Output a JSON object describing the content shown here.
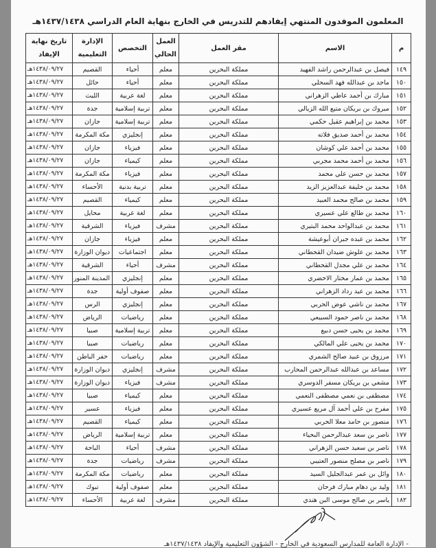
{
  "title": "المعلمون الموفدون المنتهي إيفادهم للتدريس في الخارج بنهاية العام الدراسي ١٤٣٧/١٤٣٨هـ",
  "headers": {
    "num": "م",
    "name": "الاسم",
    "workplace": "مقر العمل",
    "current_job_1": "العمل",
    "current_job_2": "الحالي",
    "specialty": "التخصص",
    "admin_1": "الإدارة",
    "admin_2": "التعليمية",
    "end_date_1": "تاريخ نهاية",
    "end_date_2": "الإيفاد"
  },
  "rows": [
    [
      "١٤٩",
      "فيصل بن عبدالرحمن راشد الفهيد",
      "مملكة البحرين",
      "معلم",
      "أحياء",
      "القصيم",
      "١٤٣٨/٠٩/٢٧هـ"
    ],
    [
      "١٥٠",
      "ماجد بن عبدالله فهد السحلي",
      "مملكة البحرين",
      "معلم",
      "أحياء",
      "حائل",
      "١٤٣٨/٠٩/٢٧هـ"
    ],
    [
      "١٥١",
      "مبارك بن أحمد عاطي الزهراني",
      "مملكة البحرين",
      "معلم",
      "لغة عربية",
      "الليث",
      "١٤٣٨/٠٩/٢٧هـ"
    ],
    [
      "١٥٢",
      "مبروك بن بريكان متيع الله الزيالي",
      "مملكة البحرين",
      "معلم",
      "تربية إسلامية",
      "جدة",
      "١٤٣٨/٠٩/٢٧هـ"
    ],
    [
      "١٥٣",
      "محمد بن إبراهيم عقيل حكمي",
      "مملكة البحرين",
      "معلم",
      "تربية إسلامية",
      "جازان",
      "١٤٣٨/٠٩/٢٧هـ"
    ],
    [
      "١٥٤",
      "محمد بن أحمد صديق فلاته",
      "مملكة البحرين",
      "معلم",
      "إنجليزي",
      "مكة المكرمة",
      "١٤٣٨/٠٩/٢٧هـ"
    ],
    [
      "١٥٥",
      "محمد بن أحمد علي كوشان",
      "مملكة البحرين",
      "معلم",
      "فيزياء",
      "جازان",
      "١٤٣٨/٠٩/٢٧هـ"
    ],
    [
      "١٥٦",
      "محمد بن أحمد محمد مجربي",
      "مملكة البحرين",
      "معلم",
      "كيمياء",
      "جازان",
      "١٤٣٨/٠٩/٢٧هـ"
    ],
    [
      "١٥٧",
      "محمد بن حسن علي محمد",
      "مملكة البحرين",
      "معلم",
      "فيزياء",
      "مكة المكرمة",
      "١٤٣٨/٠٩/٢٧هـ"
    ],
    [
      "١٥٨",
      "محمد بن خليفة عبدالعزيز الزيد",
      "مملكة البحرين",
      "معلم",
      "تربية بدنية",
      "الأحساء",
      "١٤٣٨/٠٩/٢٧هـ"
    ],
    [
      "١٥٩",
      "محمد بن صالح محمد العبيد",
      "مملكة البحرين",
      "معلم",
      "كيمياء",
      "القصيم",
      "١٤٣٨/٠٩/٢٧هـ"
    ],
    [
      "١٦٠",
      "محمد بن طالع علي عسيري",
      "مملكة البحرين",
      "معلم",
      "لغة عربية",
      "محايل",
      "١٤٣٨/٠٩/٢٧هـ"
    ],
    [
      "١٦١",
      "محمد بن عبدالواحد محمد البتيري",
      "مملكة البحرين",
      "مشرف",
      "فيزياء",
      "الشرقية",
      "١٤٣٨/٠٩/٢٧هـ"
    ],
    [
      "١٦٢",
      "محمد بن عبده جبران أبوعيشة",
      "مملكة البحرين",
      "معلم",
      "فيزياء",
      "جازان",
      "١٤٣٨/٠٩/٢٧هـ"
    ],
    [
      "١٦٣",
      "محمد بن علوش ضيدان القحطاني",
      "مملكة البحرين",
      "معلم",
      "اجتماعيات",
      "ديوان الوزارة",
      "١٤٣٨/٠٩/٢٧هـ"
    ],
    [
      "١٦٤",
      "محمد بن علي مجدل القحطاني",
      "مملكة البحرين",
      "مشرف",
      "أحياء",
      "الشرقية",
      "١٤٣٨/٠٩/٢٧هـ"
    ],
    [
      "١٦٥",
      "محمد بن عمار مختار الاخضري",
      "مملكة البحرين",
      "معلم",
      "إنجليزي",
      "المدينة المنورة",
      "١٤٣٨/٠٩/٢٧هـ"
    ],
    [
      "١٦٦",
      "محمد بن عيد رداد الزهراني",
      "مملكة البحرين",
      "معلم",
      "صفوف أولية",
      "جدة",
      "١٤٣٨/٠٩/٢٧هـ"
    ],
    [
      "١٦٧",
      "محمد بن ناشي عوض الحربي",
      "مملكة البحرين",
      "معلم",
      "إنجليزي",
      "الرس",
      "١٤٣٨/٠٩/٢٧هـ"
    ],
    [
      "١٦٨",
      "محمد بن ناصر حمود السبيعي",
      "مملكة البحرين",
      "معلم",
      "رياضيات",
      "الرياض",
      "١٤٣٨/٠٩/٢٧هـ"
    ],
    [
      "١٦٩",
      "محمد بن يحيى حسن دبيع",
      "مملكة البحرين",
      "معلم",
      "تربية إسلامية",
      "صبيا",
      "١٤٣٨/٠٩/٢٧هـ"
    ],
    [
      "١٧٠",
      "محمد بن يحيى علي المالكي",
      "مملكة البحرين",
      "معلم",
      "رياضيات",
      "صبيا",
      "١٤٣٨/٠٩/٢٧هـ"
    ],
    [
      "١٧١",
      "مرزوق بن عبيد صالح الشمري",
      "مملكة البحرين",
      "معلم",
      "رياضيات",
      "حفر الباطن",
      "١٤٣٨/٠٩/٢٧هـ"
    ],
    [
      "١٧٢",
      "مساعد بن عبدالله عبدالرحمن المحارب",
      "مملكة البحرين",
      "مشرف",
      "إنجليزي",
      "ديوان الوزارة",
      "١٤٣٨/٠٩/٢٧هـ"
    ],
    [
      "١٧٣",
      "مشعي بن بريكان مسفر الدوسري",
      "مملكة البحرين",
      "مشرف",
      "فيزياء",
      "ديوان الوزارة",
      "١٤٣٨/٠٩/٢٧هـ"
    ],
    [
      "١٧٤",
      "مصطفى بن نعمي مصطفى النعمي",
      "مملكة البحرين",
      "معلم",
      "كيمياء",
      "صبيا",
      "١٤٣٨/٠٩/٢٧هـ"
    ],
    [
      "١٧٥",
      "مفرح بن علي أحمد آل مريع عسيري",
      "مملكة البحرين",
      "معلم",
      "فيزياء",
      "عسير",
      "١٤٣٨/٠٩/٢٧هـ"
    ],
    [
      "١٧٦",
      "منصور بن حامد معلا الحربي",
      "مملكة البحرين",
      "معلم",
      "كيمياء",
      "القصيم",
      "١٤٣٨/٠٩/٢٧هـ"
    ],
    [
      "١٧٧",
      "ناصر بن سعد عبدالرحمن البحياء",
      "مملكة البحرين",
      "معلم",
      "تربية إسلامية",
      "الرياض",
      "١٤٣٨/٠٩/٢٧هـ"
    ],
    [
      "١٧٨",
      "ناصر بن سعيد حسن الزهراني",
      "مملكة البحرين",
      "مشرف",
      "أحياء",
      "الباحة",
      "١٤٣٨/٠٩/٢٧هـ"
    ],
    [
      "١٧٩",
      "ناصر بن مصلح منصور العتيبي",
      "مملكة البحرين",
      "مشرف",
      "رياضيات",
      "جدة",
      "١٤٣٨/٠٩/٢٧هـ"
    ],
    [
      "١٨٠",
      "وائل بن عمر عبدالجليل السيد",
      "مملكة البحرين",
      "معلم",
      "رياضيات",
      "مكة المكرمة",
      "١٤٣٨/٠٩/٢٧هـ"
    ],
    [
      "١٨١",
      "وليد بن دهام مبارك فرحان",
      "مملكة البحرين",
      "معلم",
      "صفوف أولية",
      "تبوك",
      "١٤٣٨/٠٩/٢٧هـ"
    ],
    [
      "١٨٢",
      "ياسر بن صالح موسى البن هندي",
      "مملكة البحرين",
      "مشرف",
      "لغة عربية",
      "الأحساء",
      "١٤٣٨/٠٩/٢٧هـ"
    ]
  ],
  "footer": "- الإدارة العامة للمدارس السعودية في الخارج - الشؤون التعليمية والإيفاد ١٤٣٧/١٤٣٨هـ"
}
